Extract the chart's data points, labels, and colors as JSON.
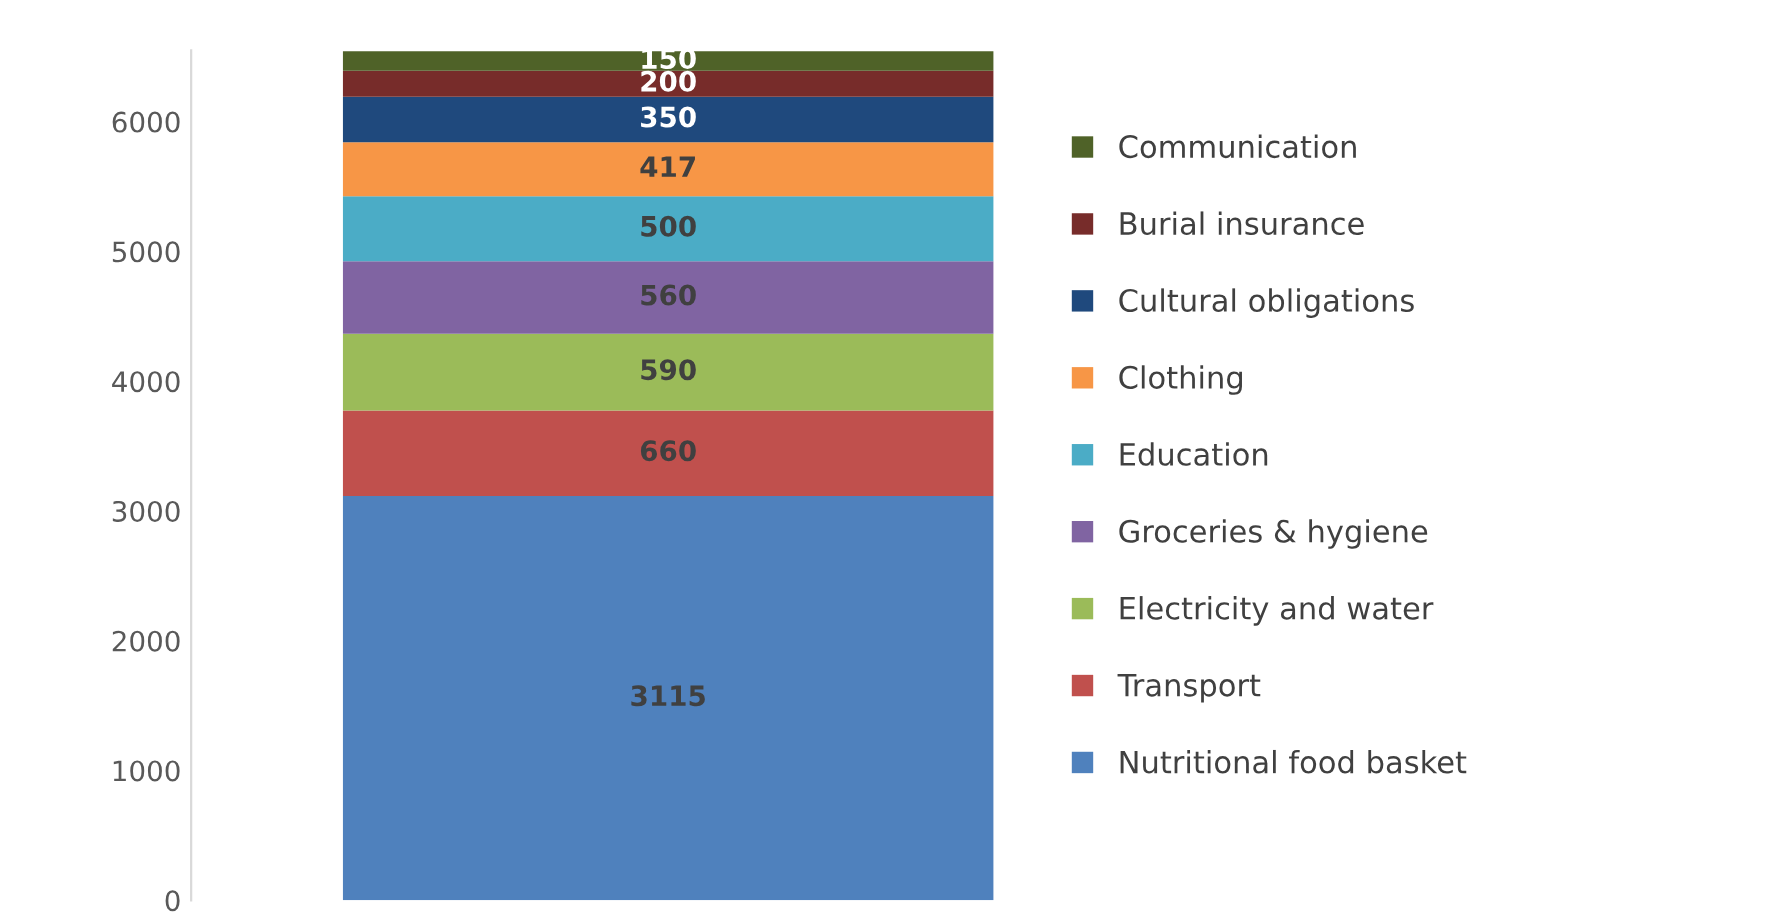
{
  "chart_data": {
    "type": "bar",
    "stacked": true,
    "categories": [
      null
    ],
    "series": [
      {
        "name": "Nutritional food basket",
        "color": "#4f81bd",
        "values": [
          3115
        ]
      },
      {
        "name": "Transport",
        "color": "#c0504d",
        "values": [
          660
        ]
      },
      {
        "name": "Electricity and water",
        "color": "#9bbb59",
        "values": [
          590
        ]
      },
      {
        "name": "Groceries & hygiene",
        "color": "#8064a2",
        "values": [
          560
        ]
      },
      {
        "name": "Education",
        "color": "#4bacc6",
        "values": [
          500
        ]
      },
      {
        "name": "Clothing",
        "color": "#f79646",
        "values": [
          417
        ]
      },
      {
        "name": "Cultural obligations",
        "color": "#1f497d",
        "values": [
          350
        ]
      },
      {
        "name": "Burial insurance",
        "color": "#772c2a",
        "values": [
          200
        ]
      },
      {
        "name": "Communication",
        "color": "#4f6228",
        "values": [
          150
        ]
      }
    ],
    "ylim": [
      0,
      6550
    ],
    "yticks": [
      0,
      1000,
      2000,
      3000,
      4000,
      5000,
      6000
    ],
    "data_labels": true,
    "legend": "right",
    "grid": false
  }
}
